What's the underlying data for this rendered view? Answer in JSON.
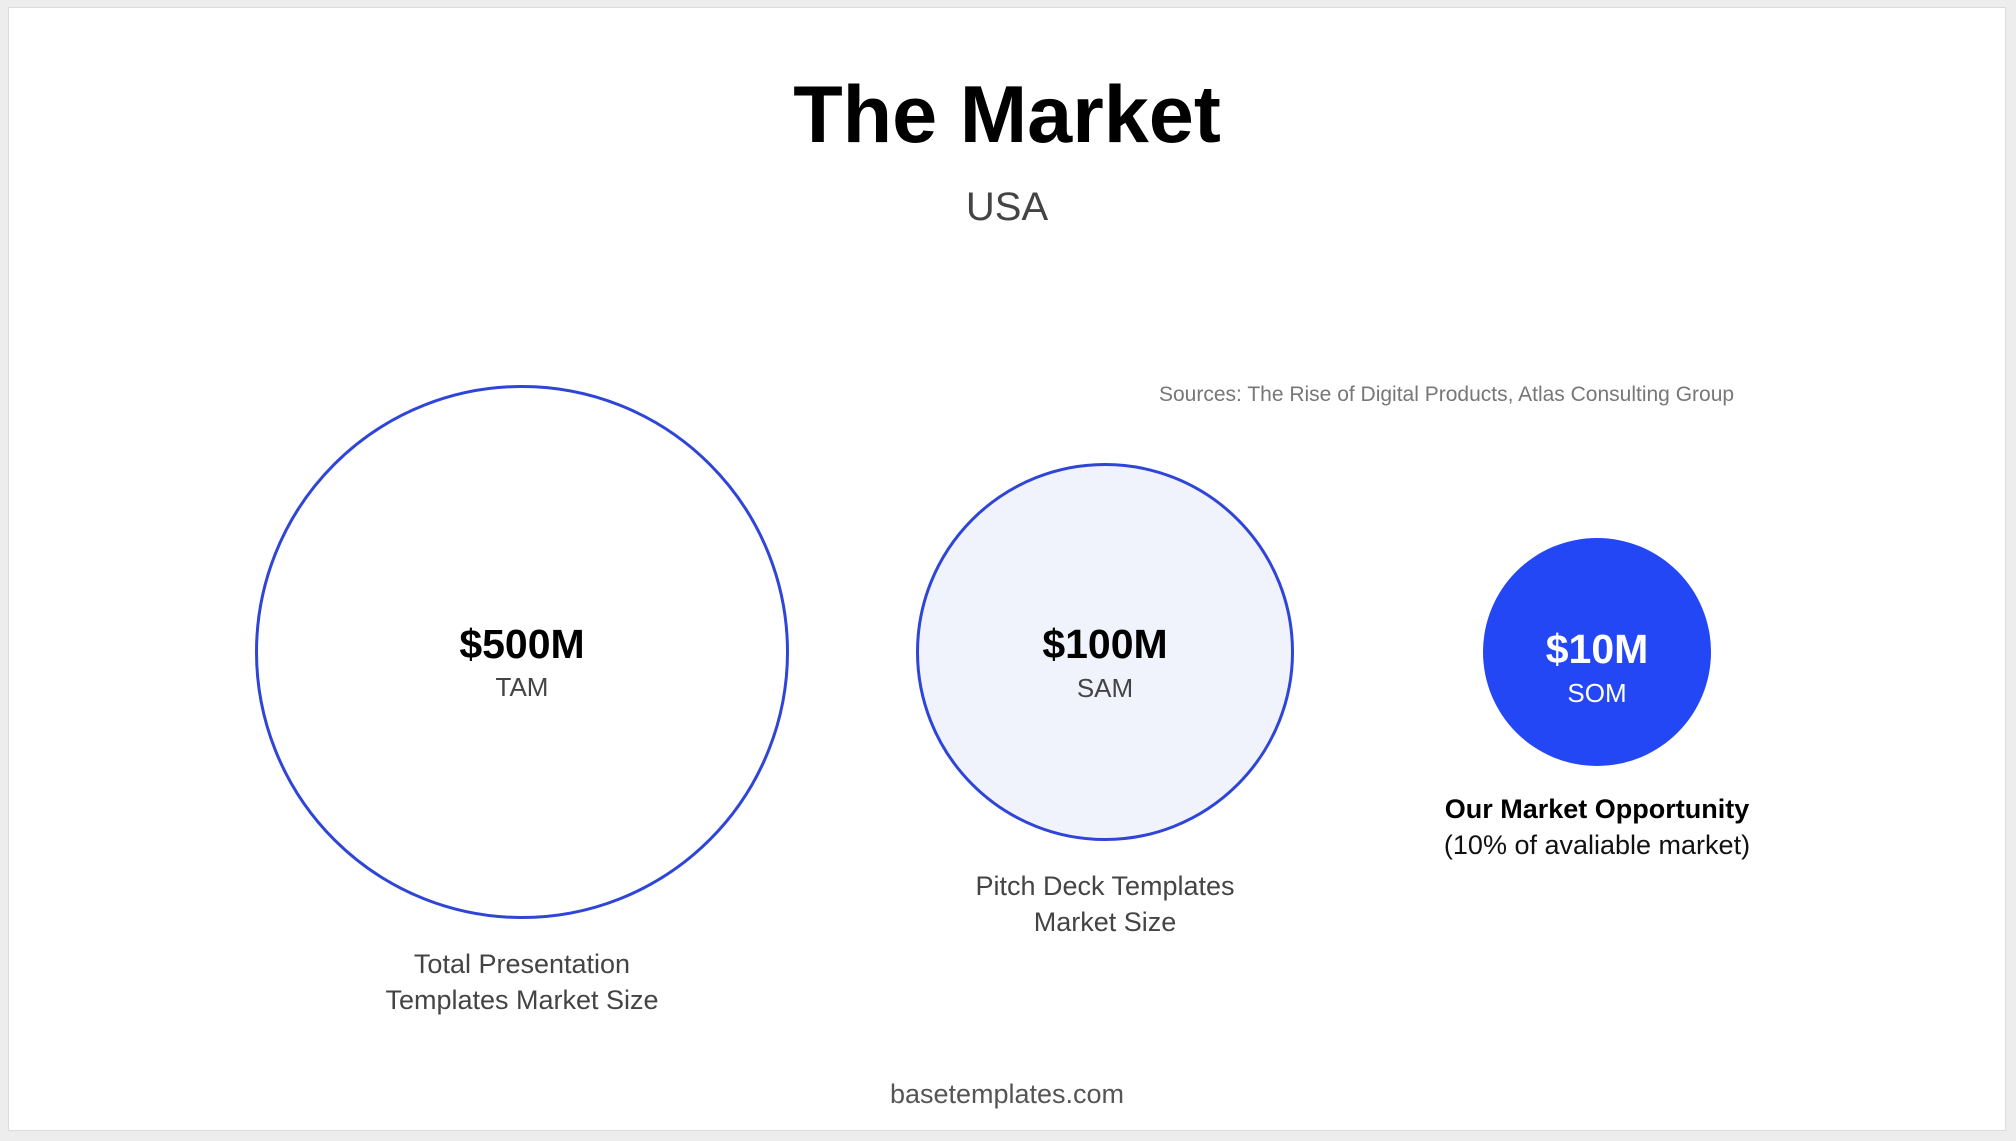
{
  "slide": {
    "title": "The Market",
    "subtitle": "USA",
    "sources": "Sources: The Rise of Digital Products, Atlas Consulting Group",
    "footer": "basetemplates.com"
  },
  "circles": {
    "tam": {
      "value": "$500M",
      "abbr": "TAM",
      "caption_line1": "Total Presentation",
      "caption_line2": "Templates Market Size"
    },
    "sam": {
      "value": "$100M",
      "abbr": "SAM",
      "caption_line1": "Pitch Deck Templates",
      "caption_line2": "Market Size"
    },
    "som": {
      "value": "$10M",
      "abbr": "SOM",
      "caption_line1": "Our Market Opportunity",
      "caption_line2": "(10% of avaliable market)"
    }
  },
  "colors": {
    "accent": "#2447f5",
    "outline": "#2e45d8",
    "sam_fill": "#f0f3fc"
  }
}
